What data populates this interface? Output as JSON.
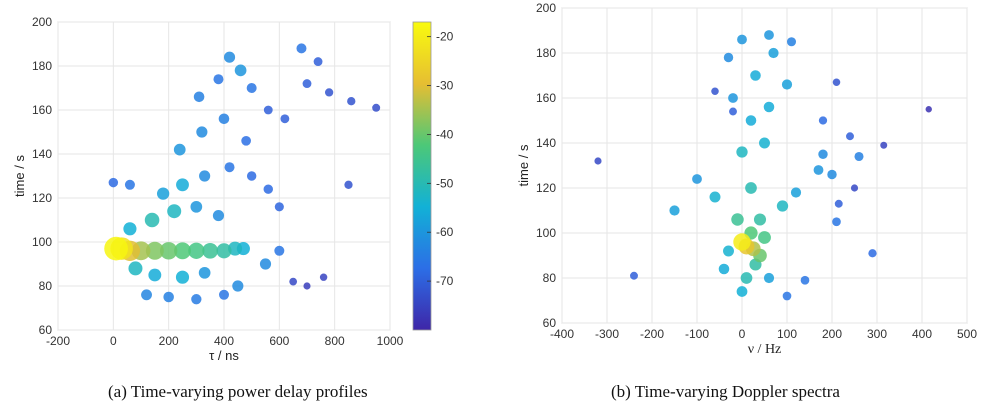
{
  "chart_data": [
    {
      "type": "scatter",
      "caption": "(a) Time-varying power delay profiles",
      "xlabel": "τ / ns",
      "ylabel": "time / s",
      "xlim": [
        -200,
        1000
      ],
      "ylim": [
        60,
        200
      ],
      "xticks": [
        "-200",
        "0",
        "200",
        "400",
        "600",
        "800",
        "1000"
      ],
      "yticks": [
        "60",
        "80",
        "100",
        "120",
        "140",
        "160",
        "180",
        "200"
      ],
      "colorbar": {
        "range": [
          -80,
          -17
        ],
        "ticks": [
          "-20",
          "-30",
          "-40",
          "-50",
          "-60",
          "-70"
        ]
      },
      "grid": true,
      "points": [
        {
          "x": 10,
          "y": 97,
          "v": -18
        },
        {
          "x": 30,
          "y": 97,
          "v": -22
        },
        {
          "x": 60,
          "y": 96,
          "v": -30
        },
        {
          "x": 100,
          "y": 96,
          "v": -35
        },
        {
          "x": 150,
          "y": 96,
          "v": -38
        },
        {
          "x": 200,
          "y": 96,
          "v": -40
        },
        {
          "x": 250,
          "y": 96,
          "v": -42
        },
        {
          "x": 300,
          "y": 96,
          "v": -44
        },
        {
          "x": 350,
          "y": 96,
          "v": -46
        },
        {
          "x": 400,
          "y": 96,
          "v": -48
        },
        {
          "x": 440,
          "y": 97,
          "v": -52
        },
        {
          "x": 470,
          "y": 97,
          "v": -55
        },
        {
          "x": 80,
          "y": 88,
          "v": -52
        },
        {
          "x": 150,
          "y": 85,
          "v": -56
        },
        {
          "x": 250,
          "y": 84,
          "v": -55
        },
        {
          "x": 330,
          "y": 86,
          "v": -60
        },
        {
          "x": 120,
          "y": 76,
          "v": -63
        },
        {
          "x": 200,
          "y": 75,
          "v": -64
        },
        {
          "x": 300,
          "y": 74,
          "v": -65
        },
        {
          "x": 400,
          "y": 76,
          "v": -66
        },
        {
          "x": 450,
          "y": 80,
          "v": -62
        },
        {
          "x": 60,
          "y": 106,
          "v": -55
        },
        {
          "x": 140,
          "y": 110,
          "v": -50
        },
        {
          "x": 220,
          "y": 114,
          "v": -52
        },
        {
          "x": 300,
          "y": 116,
          "v": -60
        },
        {
          "x": 380,
          "y": 112,
          "v": -62
        },
        {
          "x": 180,
          "y": 122,
          "v": -58
        },
        {
          "x": 250,
          "y": 126,
          "v": -56
        },
        {
          "x": 330,
          "y": 130,
          "v": -62
        },
        {
          "x": 420,
          "y": 134,
          "v": -66
        },
        {
          "x": 500,
          "y": 130,
          "v": -68
        },
        {
          "x": 240,
          "y": 142,
          "v": -60
        },
        {
          "x": 320,
          "y": 150,
          "v": -62
        },
        {
          "x": 400,
          "y": 156,
          "v": -64
        },
        {
          "x": 480,
          "y": 146,
          "v": -67
        },
        {
          "x": 310,
          "y": 166,
          "v": -64
        },
        {
          "x": 380,
          "y": 174,
          "v": -66
        },
        {
          "x": 420,
          "y": 184,
          "v": -62
        },
        {
          "x": 460,
          "y": 178,
          "v": -60
        },
        {
          "x": 500,
          "y": 170,
          "v": -66
        },
        {
          "x": 560,
          "y": 160,
          "v": -70
        },
        {
          "x": 620,
          "y": 156,
          "v": -70
        },
        {
          "x": 700,
          "y": 172,
          "v": -70
        },
        {
          "x": 780,
          "y": 168,
          "v": -72
        },
        {
          "x": 860,
          "y": 164,
          "v": -72
        },
        {
          "x": 950,
          "y": 161,
          "v": -73
        },
        {
          "x": 680,
          "y": 188,
          "v": -66
        },
        {
          "x": 740,
          "y": 182,
          "v": -70
        },
        {
          "x": 650,
          "y": 82,
          "v": -74
        },
        {
          "x": 700,
          "y": 80,
          "v": -76
        },
        {
          "x": 760,
          "y": 84,
          "v": -75
        },
        {
          "x": 0,
          "y": 127,
          "v": -68
        },
        {
          "x": 60,
          "y": 126,
          "v": -66
        },
        {
          "x": 560,
          "y": 124,
          "v": -68
        },
        {
          "x": 600,
          "y": 116,
          "v": -69
        },
        {
          "x": 850,
          "y": 126,
          "v": -72
        },
        {
          "x": 550,
          "y": 90,
          "v": -62
        },
        {
          "x": 600,
          "y": 96,
          "v": -66
        }
      ]
    },
    {
      "type": "scatter",
      "caption": "(b) Time-varying Doppler spectra",
      "xlabel": "ν / Hz",
      "ylabel": "time / s",
      "xlim": [
        -400,
        500
      ],
      "ylim": [
        60,
        200
      ],
      "xticks": [
        "-400",
        "-300",
        "-200",
        "-100",
        "0",
        "100",
        "200",
        "300",
        "400",
        "500"
      ],
      "yticks": [
        "60",
        "80",
        "100",
        "120",
        "140",
        "160",
        "180",
        "200"
      ],
      "grid": true,
      "points": [
        {
          "x": 0,
          "y": 96,
          "v": -20
        },
        {
          "x": 10,
          "y": 94,
          "v": -28
        },
        {
          "x": 25,
          "y": 93,
          "v": -34
        },
        {
          "x": 40,
          "y": 90,
          "v": -40
        },
        {
          "x": 20,
          "y": 100,
          "v": -42
        },
        {
          "x": 30,
          "y": 86,
          "v": -48
        },
        {
          "x": 10,
          "y": 80,
          "v": -50
        },
        {
          "x": 0,
          "y": 74,
          "v": -55
        },
        {
          "x": 60,
          "y": 80,
          "v": -58
        },
        {
          "x": 100,
          "y": 72,
          "v": -66
        },
        {
          "x": 140,
          "y": 79,
          "v": -66
        },
        {
          "x": -40,
          "y": 84,
          "v": -56
        },
        {
          "x": -10,
          "y": 106,
          "v": -46
        },
        {
          "x": 40,
          "y": 106,
          "v": -48
        },
        {
          "x": 90,
          "y": 112,
          "v": -52
        },
        {
          "x": -60,
          "y": 116,
          "v": -54
        },
        {
          "x": -150,
          "y": 110,
          "v": -58
        },
        {
          "x": -100,
          "y": 124,
          "v": -60
        },
        {
          "x": 20,
          "y": 120,
          "v": -50
        },
        {
          "x": 120,
          "y": 118,
          "v": -58
        },
        {
          "x": 170,
          "y": 128,
          "v": -60
        },
        {
          "x": 200,
          "y": 126,
          "v": -62
        },
        {
          "x": 180,
          "y": 135,
          "v": -62
        },
        {
          "x": 260,
          "y": 134,
          "v": -64
        },
        {
          "x": 0,
          "y": 136,
          "v": -52
        },
        {
          "x": 50,
          "y": 140,
          "v": -54
        },
        {
          "x": 20,
          "y": 150,
          "v": -56
        },
        {
          "x": 60,
          "y": 156,
          "v": -56
        },
        {
          "x": 100,
          "y": 166,
          "v": -58
        },
        {
          "x": 30,
          "y": 170,
          "v": -56
        },
        {
          "x": 70,
          "y": 180,
          "v": -58
        },
        {
          "x": 0,
          "y": 186,
          "v": -60
        },
        {
          "x": 60,
          "y": 188,
          "v": -60
        },
        {
          "x": -30,
          "y": 178,
          "v": -62
        },
        {
          "x": -20,
          "y": 160,
          "v": -60
        },
        {
          "x": 110,
          "y": 185,
          "v": -64
        },
        {
          "x": -320,
          "y": 132,
          "v": -74
        },
        {
          "x": -240,
          "y": 81,
          "v": -70
        },
        {
          "x": -60,
          "y": 163,
          "v": -72
        },
        {
          "x": -20,
          "y": 154,
          "v": -70
        },
        {
          "x": 180,
          "y": 150,
          "v": -68
        },
        {
          "x": 210,
          "y": 167,
          "v": -72
        },
        {
          "x": 240,
          "y": 143,
          "v": -70
        },
        {
          "x": 250,
          "y": 120,
          "v": -74
        },
        {
          "x": 215,
          "y": 113,
          "v": -70
        },
        {
          "x": 210,
          "y": 105,
          "v": -66
        },
        {
          "x": 290,
          "y": 91,
          "v": -68
        },
        {
          "x": 315,
          "y": 139,
          "v": -75
        },
        {
          "x": 415,
          "y": 155,
          "v": -78
        },
        {
          "x": -30,
          "y": 92,
          "v": -54
        },
        {
          "x": 50,
          "y": 98,
          "v": -44
        }
      ]
    }
  ]
}
